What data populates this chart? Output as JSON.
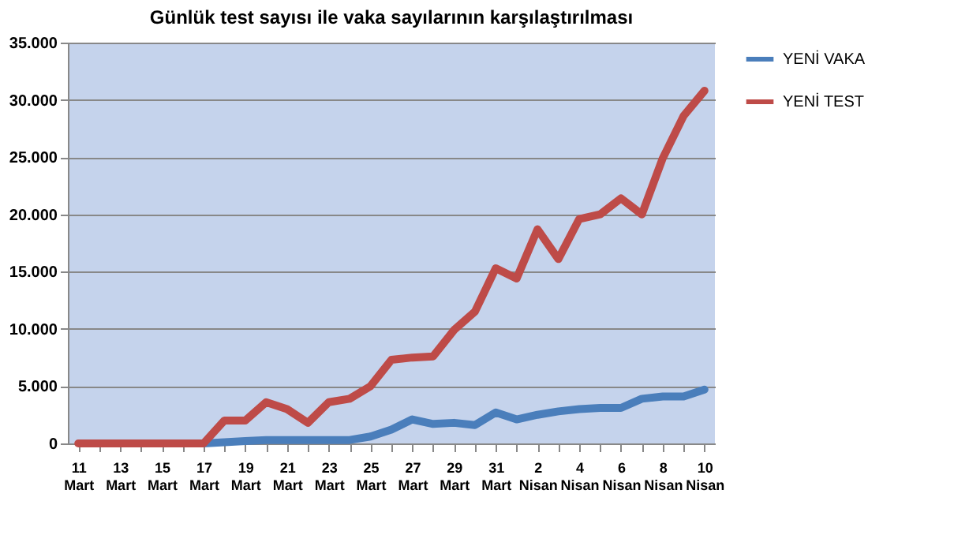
{
  "chart_data": {
    "type": "line",
    "title": "Günlük test sayısı ile vaka sayılarının karşılaştırılması",
    "categories": [
      "11 Mart",
      null,
      "13 Mart",
      null,
      "15 Mart",
      null,
      "17 Mart",
      null,
      "19 Mart",
      null,
      "21 Mart",
      null,
      "23 Mart",
      null,
      "25 Mart",
      null,
      "27 Mart",
      null,
      "29 Mart",
      null,
      "31 Mart",
      null,
      "2 Nisan",
      null,
      "4 Nisan",
      null,
      "6 Nisan",
      null,
      "8 Nisan",
      null,
      "10 Nisan"
    ],
    "series": [
      {
        "name": "YENİ VAKA",
        "color": "#4a7ebb",
        "values": [
          null,
          null,
          null,
          null,
          null,
          0,
          0,
          100,
          200,
          300,
          300,
          300,
          300,
          300,
          600,
          1200,
          2100,
          1700,
          1800,
          1600,
          2700,
          2100,
          2500,
          2800,
          3000,
          3100,
          3100,
          3900,
          4100,
          4100,
          4700
        ]
      },
      {
        "name": "YENİ TEST",
        "color": "#be4b48",
        "values": [
          0,
          0,
          0,
          0,
          0,
          0,
          0,
          2000,
          2000,
          3600,
          3000,
          1800,
          3600,
          3900,
          5000,
          7300,
          7500,
          7600,
          9900,
          11500,
          15300,
          14400,
          18700,
          16100,
          19600,
          20000,
          21400,
          20000,
          24900,
          28600,
          30800
        ]
      }
    ],
    "ylim": [
      0,
      35000
    ],
    "yticks": [
      0,
      {
        "value": 5000,
        "label": "5.000"
      },
      {
        "value": 10000,
        "label": "10.000"
      },
      {
        "value": 15000,
        "label": "15.000"
      },
      {
        "value": 20000,
        "label": "20.000"
      },
      {
        "value": 25000,
        "label": "25.000"
      },
      {
        "value": 30000,
        "label": "30.000"
      },
      {
        "value": 35000,
        "label": "35.000"
      }
    ],
    "grid": "y",
    "legend": "right",
    "marker": "none",
    "line_style": "solid"
  }
}
